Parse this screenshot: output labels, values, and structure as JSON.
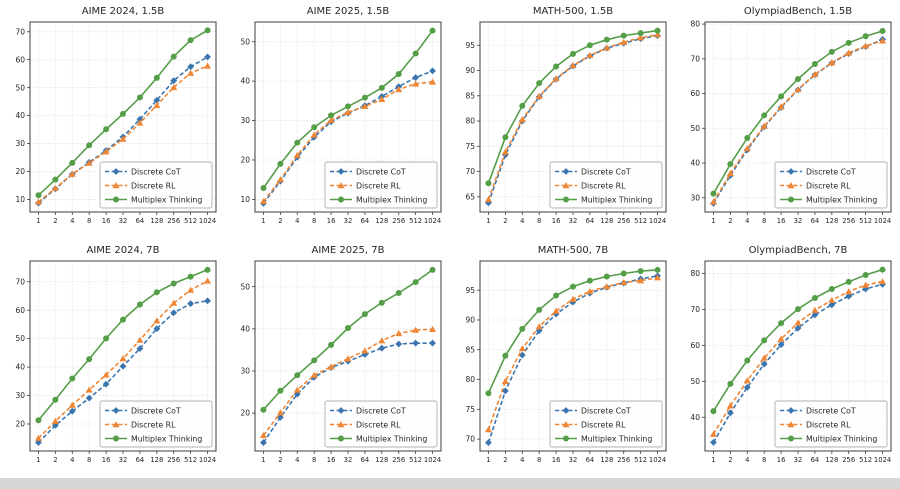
{
  "page": {
    "background_color": "#ffffff",
    "bottom_strip_color": "#d6d6d6"
  },
  "colors": {
    "discrete_cot": "#3b75af",
    "discrete_rl": "#ef8636",
    "multiplex_thinking": "#549e48",
    "grid": "#dcdcdc",
    "spine": "#3c3c3c",
    "legend_border": "#b0b0b0",
    "legend_background": "#fefefe"
  },
  "legend": {
    "position": "lower right",
    "items": [
      {
        "label": "Discrete CoT",
        "marker": "diamond",
        "line": "dashed",
        "color": "#3b75af"
      },
      {
        "label": "Discrete RL",
        "marker": "triangle",
        "line": "dashed",
        "color": "#ef8636"
      },
      {
        "label": "Multiplex Thinking",
        "marker": "circle",
        "line": "solid",
        "color": "#549e48"
      }
    ]
  },
  "chart_data": [
    {
      "type": "line",
      "title": "AIME 2024, 1.5B",
      "xscale": "log2",
      "x": [
        1,
        2,
        4,
        8,
        16,
        32,
        64,
        128,
        256,
        512,
        1024
      ],
      "xticklabels": [
        "1",
        "2",
        "4",
        "8",
        "16",
        "32",
        "64",
        "128",
        "256",
        "512",
        "1024"
      ],
      "ylim": [
        5.5,
        73.5
      ],
      "yticks": [
        10,
        20,
        30,
        40,
        50,
        60,
        70
      ],
      "grid": true,
      "series": [
        {
          "name": "Discrete CoT",
          "color": "#3b75af",
          "line": "dashed",
          "marker": "diamond",
          "values": [
            8.7,
            13.8,
            19.0,
            23.3,
            27.5,
            32.4,
            38.7,
            45.5,
            52.5,
            57.5,
            61.0
          ]
        },
        {
          "name": "Discrete RL",
          "color": "#ef8636",
          "line": "dashed",
          "marker": "triangle",
          "values": [
            9.1,
            14.0,
            19.1,
            23.0,
            27.1,
            31.6,
            37.4,
            43.7,
            50.1,
            55.2,
            57.8
          ]
        },
        {
          "name": "Multiplex Thinking",
          "color": "#549e48",
          "line": "solid",
          "marker": "circle",
          "values": [
            11.5,
            17.1,
            23.1,
            29.4,
            35.1,
            40.6,
            46.5,
            53.5,
            61.1,
            67.0,
            70.5
          ]
        }
      ]
    },
    {
      "type": "line",
      "title": "AIME 2025, 1.5B",
      "xscale": "log2",
      "x": [
        1,
        2,
        4,
        8,
        16,
        32,
        64,
        128,
        256,
        512,
        1024
      ],
      "xticklabels": [
        "1",
        "2",
        "4",
        "8",
        "16",
        "32",
        "64",
        "128",
        "256",
        "512",
        "1024"
      ],
      "ylim": [
        6.8,
        55.0
      ],
      "yticks": [
        10,
        20,
        30,
        40,
        50
      ],
      "grid": true,
      "series": [
        {
          "name": "Discrete CoT",
          "color": "#3b75af",
          "line": "dashed",
          "marker": "diamond",
          "values": [
            9.0,
            14.6,
            20.7,
            25.8,
            29.7,
            31.9,
            33.8,
            36.1,
            38.6,
            40.9,
            42.6
          ]
        },
        {
          "name": "Discrete RL",
          "color": "#ef8636",
          "line": "dashed",
          "marker": "triangle",
          "values": [
            9.5,
            15.0,
            21.2,
            26.4,
            30.1,
            32.1,
            33.6,
            35.4,
            37.9,
            39.3,
            39.8
          ]
        },
        {
          "name": "Multiplex Thinking",
          "color": "#549e48",
          "line": "solid",
          "marker": "circle",
          "values": [
            12.9,
            19.0,
            24.4,
            28.3,
            31.3,
            33.6,
            35.8,
            38.3,
            41.8,
            47.0,
            52.8
          ]
        }
      ]
    },
    {
      "type": "line",
      "title": "MATH-500, 1.5B",
      "xscale": "log2",
      "x": [
        1,
        2,
        4,
        8,
        16,
        32,
        64,
        128,
        256,
        512,
        1024
      ],
      "xticklabels": [
        "1",
        "2",
        "4",
        "8",
        "16",
        "32",
        "64",
        "128",
        "256",
        "512",
        "1024"
      ],
      "ylim": [
        62.0,
        99.6
      ],
      "yticks": [
        65,
        70,
        75,
        80,
        85,
        90,
        95
      ],
      "grid": true,
      "series": [
        {
          "name": "Discrete CoT",
          "color": "#3b75af",
          "line": "dashed",
          "marker": "diamond",
          "values": [
            63.8,
            73.3,
            80.0,
            84.8,
            88.3,
            90.9,
            92.9,
            94.4,
            95.4,
            96.3,
            96.9
          ]
        },
        {
          "name": "Discrete RL",
          "color": "#ef8636",
          "line": "dashed",
          "marker": "triangle",
          "values": [
            64.5,
            73.9,
            80.3,
            84.9,
            88.4,
            91.0,
            93.0,
            94.5,
            95.6,
            96.5,
            97.1
          ]
        },
        {
          "name": "Multiplex Thinking",
          "color": "#549e48",
          "line": "solid",
          "marker": "circle",
          "values": [
            67.7,
            76.8,
            83.0,
            87.5,
            90.8,
            93.3,
            95.0,
            96.1,
            96.9,
            97.4,
            97.9
          ]
        }
      ]
    },
    {
      "type": "line",
      "title": "OlympiadBench, 1.5B",
      "xscale": "log2",
      "x": [
        1,
        2,
        4,
        8,
        16,
        32,
        64,
        128,
        256,
        512,
        1024
      ],
      "xticklabels": [
        "1",
        "2",
        "4",
        "8",
        "16",
        "32",
        "64",
        "128",
        "256",
        "512",
        "1024"
      ],
      "ylim": [
        25.9,
        80.6
      ],
      "yticks": [
        30,
        40,
        50,
        60,
        70,
        80
      ],
      "grid": true,
      "series": [
        {
          "name": "Discrete CoT",
          "color": "#3b75af",
          "line": "dashed",
          "marker": "diamond",
          "values": [
            28.4,
            36.4,
            43.8,
            50.4,
            56.0,
            61.1,
            65.4,
            68.8,
            71.5,
            73.5,
            75.6
          ]
        },
        {
          "name": "Discrete RL",
          "color": "#ef8636",
          "line": "dashed",
          "marker": "triangle",
          "values": [
            28.8,
            37.0,
            44.2,
            50.6,
            56.2,
            61.2,
            65.5,
            68.9,
            71.7,
            73.7,
            75.2
          ]
        },
        {
          "name": "Multiplex Thinking",
          "color": "#549e48",
          "line": "solid",
          "marker": "circle",
          "values": [
            31.2,
            39.7,
            47.2,
            53.7,
            59.2,
            64.2,
            68.5,
            72.0,
            74.6,
            76.5,
            78.0
          ]
        }
      ]
    },
    {
      "type": "line",
      "title": "AIME 2024, 7B",
      "xscale": "log2",
      "x": [
        1,
        2,
        4,
        8,
        16,
        32,
        64,
        128,
        256,
        512,
        1024
      ],
      "xticklabels": [
        "1",
        "2",
        "4",
        "8",
        "16",
        "32",
        "64",
        "128",
        "256",
        "512",
        "1024"
      ],
      "ylim": [
        10.5,
        77.3
      ],
      "yticks": [
        20,
        30,
        40,
        50,
        60,
        70
      ],
      "grid": true,
      "series": [
        {
          "name": "Discrete CoT",
          "color": "#3b75af",
          "line": "dashed",
          "marker": "diamond",
          "values": [
            13.5,
            19.5,
            24.5,
            29.1,
            34.0,
            40.3,
            46.5,
            53.5,
            59.1,
            62.3,
            63.3
          ]
        },
        {
          "name": "Discrete RL",
          "color": "#ef8636",
          "line": "dashed",
          "marker": "triangle",
          "values": [
            15.0,
            21.0,
            26.6,
            32.0,
            37.3,
            43.0,
            49.5,
            56.3,
            62.5,
            67.1,
            70.3
          ]
        },
        {
          "name": "Multiplex Thinking",
          "color": "#549e48",
          "line": "solid",
          "marker": "circle",
          "values": [
            21.3,
            28.5,
            36.0,
            42.8,
            50.1,
            56.7,
            62.0,
            66.3,
            69.4,
            71.8,
            74.2
          ]
        }
      ]
    },
    {
      "type": "line",
      "title": "AIME 2025, 7B",
      "xscale": "log2",
      "x": [
        1,
        2,
        4,
        8,
        16,
        32,
        64,
        128,
        256,
        512,
        1024
      ],
      "xticklabels": [
        "1",
        "2",
        "4",
        "8",
        "16",
        "32",
        "64",
        "128",
        "256",
        "512",
        "1024"
      ],
      "ylim": [
        11.0,
        56.1
      ],
      "yticks": [
        20,
        30,
        40,
        50
      ],
      "grid": true,
      "series": [
        {
          "name": "Discrete CoT",
          "color": "#3b75af",
          "line": "dashed",
          "marker": "diamond",
          "values": [
            13.0,
            19.0,
            24.5,
            28.5,
            30.8,
            32.3,
            33.9,
            35.4,
            36.4,
            36.6,
            36.6
          ]
        },
        {
          "name": "Discrete RL",
          "color": "#ef8636",
          "line": "dashed",
          "marker": "triangle",
          "values": [
            14.7,
            20.1,
            25.5,
            29.0,
            31.0,
            32.9,
            34.8,
            37.2,
            38.9,
            39.7,
            39.9
          ]
        },
        {
          "name": "Multiplex Thinking",
          "color": "#549e48",
          "line": "solid",
          "marker": "circle",
          "values": [
            20.8,
            25.3,
            29.0,
            32.5,
            36.2,
            40.2,
            43.5,
            46.2,
            48.5,
            51.1,
            54.0
          ]
        }
      ]
    },
    {
      "type": "line",
      "title": "MATH-500, 7B",
      "xscale": "log2",
      "x": [
        1,
        2,
        4,
        8,
        16,
        32,
        64,
        128,
        256,
        512,
        1024
      ],
      "xticklabels": [
        "1",
        "2",
        "4",
        "8",
        "16",
        "32",
        "64",
        "128",
        "256",
        "512",
        "1024"
      ],
      "ylim": [
        68.0,
        99.9
      ],
      "yticks": [
        70,
        75,
        80,
        85,
        90,
        95
      ],
      "grid": true,
      "series": [
        {
          "name": "Discrete CoT",
          "color": "#3b75af",
          "line": "dashed",
          "marker": "diamond",
          "values": [
            69.4,
            78.1,
            84.1,
            88.2,
            91.0,
            93.0,
            94.5,
            95.5,
            96.2,
            96.9,
            97.4
          ]
        },
        {
          "name": "Discrete RL",
          "color": "#ef8636",
          "line": "dashed",
          "marker": "triangle",
          "values": [
            71.6,
            79.7,
            85.2,
            88.9,
            91.5,
            93.5,
            94.8,
            95.6,
            96.3,
            96.6,
            97.1
          ]
        },
        {
          "name": "Multiplex Thinking",
          "color": "#549e48",
          "line": "solid",
          "marker": "circle",
          "values": [
            77.7,
            84.0,
            88.5,
            91.7,
            94.1,
            95.6,
            96.6,
            97.3,
            97.8,
            98.2,
            98.4
          ]
        }
      ]
    },
    {
      "type": "line",
      "title": "OlympiadBench, 7B",
      "xscale": "log2",
      "x": [
        1,
        2,
        4,
        8,
        16,
        32,
        64,
        128,
        256,
        512,
        1024
      ],
      "xticklabels": [
        "1",
        "2",
        "4",
        "8",
        "16",
        "32",
        "64",
        "128",
        "256",
        "512",
        "1024"
      ],
      "ylim": [
        30.6,
        83.5
      ],
      "yticks": [
        40,
        50,
        60,
        70,
        80
      ],
      "grid": true,
      "series": [
        {
          "name": "Discrete CoT",
          "color": "#3b75af",
          "line": "dashed",
          "marker": "diamond",
          "values": [
            33.0,
            41.2,
            48.3,
            54.8,
            60.2,
            64.8,
            68.5,
            71.3,
            73.7,
            75.7,
            77.0
          ]
        },
        {
          "name": "Discrete RL",
          "color": "#ef8636",
          "line": "dashed",
          "marker": "triangle",
          "values": [
            35.3,
            43.2,
            50.2,
            56.5,
            61.8,
            66.3,
            69.8,
            72.6,
            75.0,
            76.8,
            77.8
          ]
        },
        {
          "name": "Multiplex Thinking",
          "color": "#549e48",
          "line": "solid",
          "marker": "circle",
          "values": [
            41.7,
            49.3,
            55.8,
            61.4,
            66.2,
            70.1,
            73.2,
            75.7,
            77.7,
            79.6,
            81.1
          ]
        }
      ]
    }
  ]
}
